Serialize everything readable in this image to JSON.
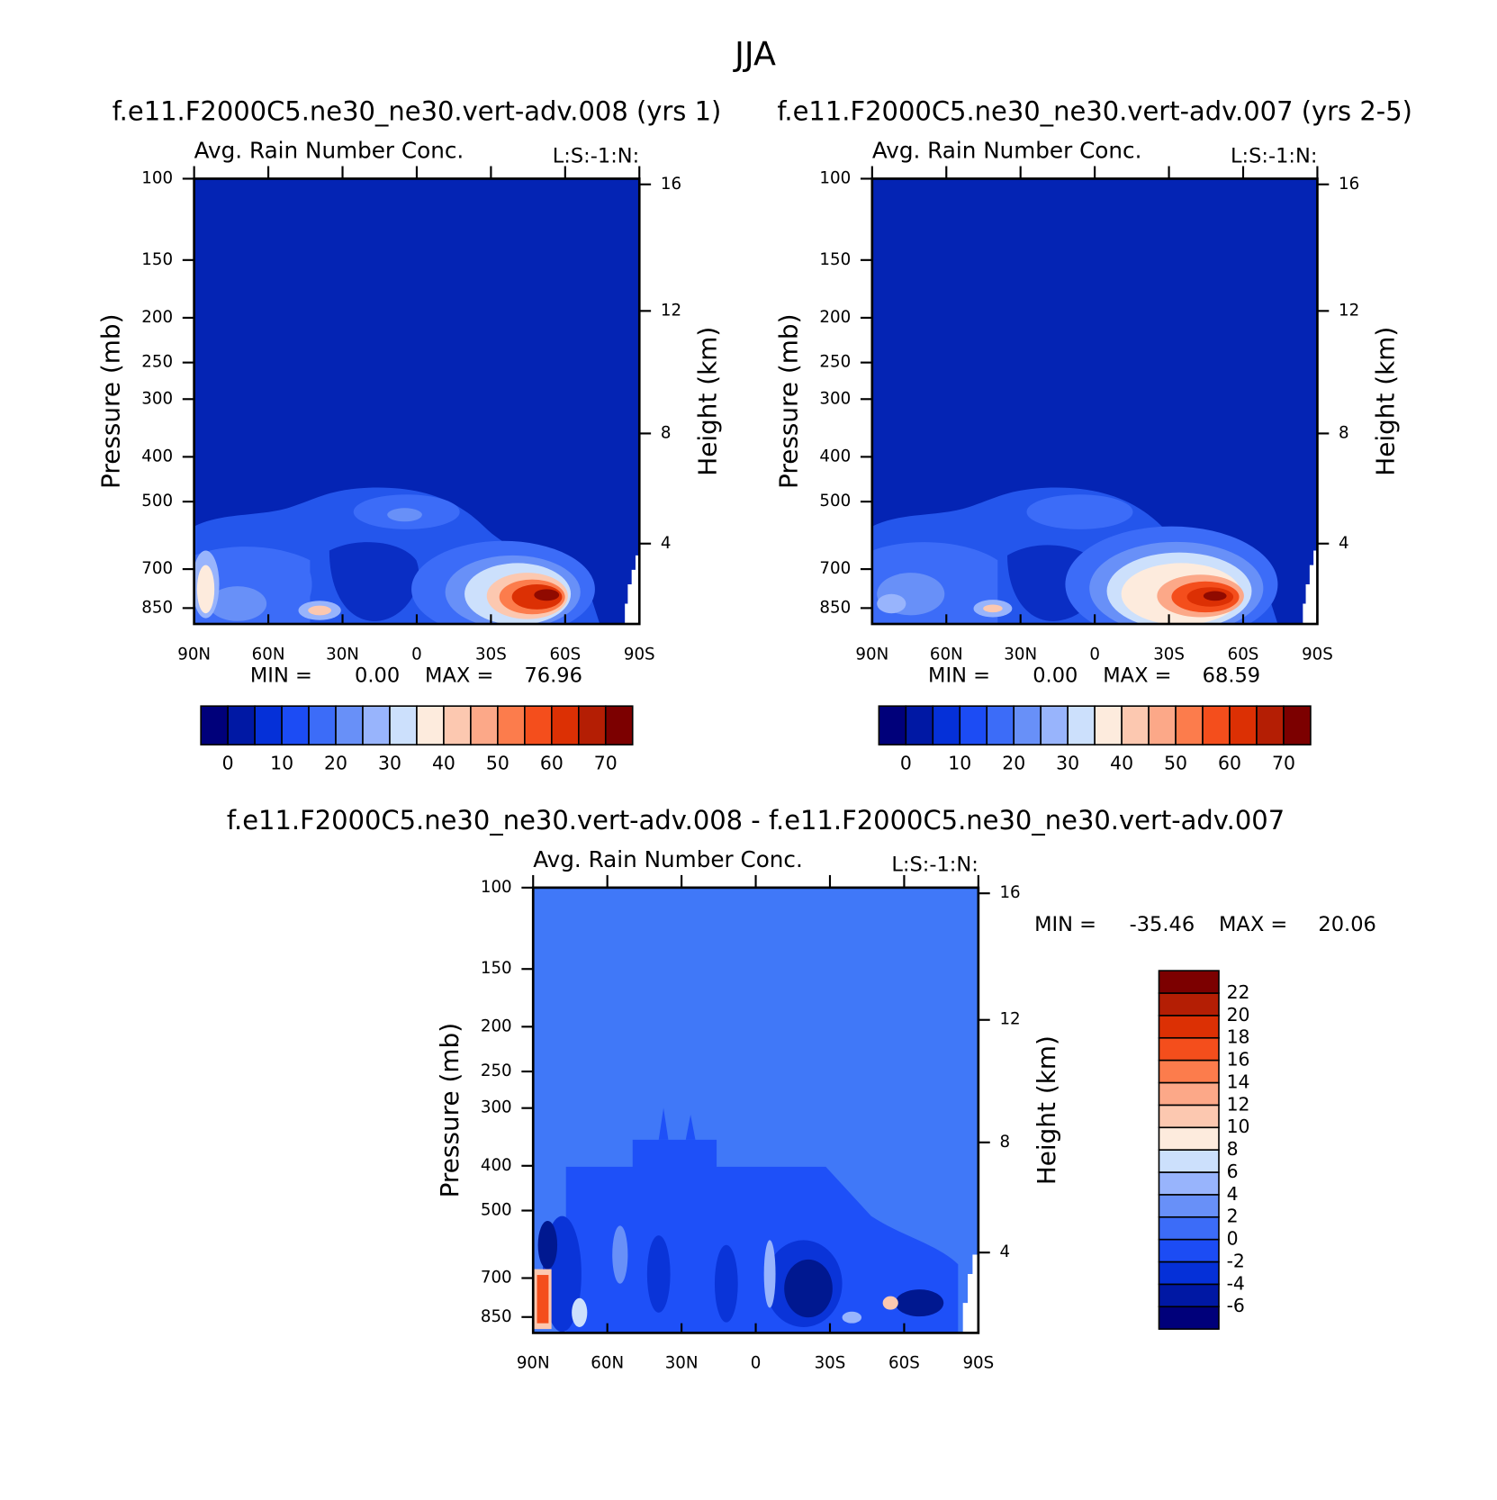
{
  "title": "JJA",
  "chart_data": [
    {
      "type": "contour",
      "title": "f.e11.F2000C5.ne30_ne30.vert-adv.008 (yrs 1)",
      "subtitle": "Avg. Rain Number Conc.",
      "corner_label": "L:S:-1:N:",
      "ylabel": "Pressure (mb)",
      "y2label": "Height (km)",
      "xlim": [
        90,
        -90
      ],
      "xticks": [
        {
          "value": 90,
          "label": "90N"
        },
        {
          "value": 60,
          "label": "60N"
        },
        {
          "value": 30,
          "label": "30N"
        },
        0,
        {
          "value": -30,
          "label": "30S"
        },
        {
          "value": -60,
          "label": "60S"
        },
        {
          "value": -90,
          "label": "90S"
        }
      ],
      "ylim": [
        100,
        920
      ],
      "ylog": true,
      "yticks": [
        100,
        150,
        200,
        250,
        300,
        400,
        500,
        700,
        850
      ],
      "y2ticks": [
        16,
        12,
        8,
        4
      ],
      "stats": {
        "names": [
          "MIN =",
          "MAX ="
        ],
        "values": [
          0,
          76.96
        ],
        "value_labels": [
          "0.00",
          "76.96"
        ]
      },
      "colorbar": {
        "orientation": "horizontal",
        "clim": [
          -5,
          75
        ],
        "ticks": [
          0,
          10,
          20,
          30,
          40,
          50,
          60,
          70
        ],
        "colors": [
          "#00007a",
          "#0018a4",
          "#0530d8",
          "#1c4cf4",
          "#3c6cf8",
          "#6890f8",
          "#98b4fc",
          "#cce0fc",
          "#fdebdd",
          "#fcc8b0",
          "#fca888",
          "#fc7c4c",
          "#f44e1c",
          "#dc3004",
          "#b41e04",
          "#7c0000"
        ]
      }
    },
    {
      "type": "contour",
      "title": "f.e11.F2000C5.ne30_ne30.vert-adv.007 (yrs 2-5)",
      "subtitle": "Avg. Rain Number Conc.",
      "corner_label": "L:S:-1:N:",
      "ylabel": "Pressure (mb)",
      "y2label": "Height (km)",
      "xlim": [
        90,
        -90
      ],
      "xticks": [
        {
          "value": 90,
          "label": "90N"
        },
        {
          "value": 60,
          "label": "60N"
        },
        {
          "value": 30,
          "label": "30N"
        },
        0,
        {
          "value": -30,
          "label": "30S"
        },
        {
          "value": -60,
          "label": "60S"
        },
        {
          "value": -90,
          "label": "90S"
        }
      ],
      "ylim": [
        100,
        920
      ],
      "ylog": true,
      "yticks": [
        100,
        150,
        200,
        250,
        300,
        400,
        500,
        700,
        850
      ],
      "y2ticks": [
        16,
        12,
        8,
        4
      ],
      "stats": {
        "names": [
          "MIN =",
          "MAX ="
        ],
        "values": [
          0,
          68.59
        ],
        "value_labels": [
          "0.00",
          "68.59"
        ]
      },
      "colorbar": {
        "orientation": "horizontal",
        "clim": [
          -5,
          75
        ],
        "ticks": [
          0,
          10,
          20,
          30,
          40,
          50,
          60,
          70
        ],
        "colors": [
          "#00007a",
          "#0018a4",
          "#0530d8",
          "#1c4cf4",
          "#3c6cf8",
          "#6890f8",
          "#98b4fc",
          "#cce0fc",
          "#fdebdd",
          "#fcc8b0",
          "#fca888",
          "#fc7c4c",
          "#f44e1c",
          "#dc3004",
          "#b41e04",
          "#7c0000"
        ]
      }
    },
    {
      "type": "contour",
      "title": "f.e11.F2000C5.ne30_ne30.vert-adv.008 - f.e11.F2000C5.ne30_ne30.vert-adv.007",
      "subtitle": "Avg. Rain Number Conc.",
      "corner_label": "L:S:-1:N:",
      "ylabel": "Pressure (mb)",
      "y2label": "Height (km)",
      "xlim": [
        90,
        -90
      ],
      "xticks": [
        {
          "value": 90,
          "label": "90N"
        },
        {
          "value": 60,
          "label": "60N"
        },
        {
          "value": 30,
          "label": "30N"
        },
        0,
        {
          "value": -30,
          "label": "30S"
        },
        {
          "value": -60,
          "label": "60S"
        },
        {
          "value": -90,
          "label": "90S"
        }
      ],
      "ylim": [
        100,
        920
      ],
      "ylog": true,
      "yticks": [
        100,
        150,
        200,
        250,
        300,
        400,
        500,
        700,
        850
      ],
      "y2ticks": [
        16,
        12,
        8,
        4
      ],
      "stats": {
        "names": [
          "MIN =",
          "MAX ="
        ],
        "values": [
          -35.46,
          20.06
        ],
        "value_labels": [
          "-35.46",
          "20.06"
        ]
      },
      "colorbar": {
        "orientation": "vertical",
        "clim": [
          -8,
          24
        ],
        "ticks": [
          22,
          20,
          18,
          16,
          14,
          12,
          10,
          8,
          6,
          4,
          2,
          0,
          -2,
          -4,
          -6
        ],
        "colors": [
          "#00007a",
          "#0018a4",
          "#0530d8",
          "#1c4cf4",
          "#3c6cf8",
          "#6890f8",
          "#98b4fc",
          "#cce0fc",
          "#fdebdd",
          "#fcc8b0",
          "#fca888",
          "#fc7c4c",
          "#f44e1c",
          "#dc3004",
          "#b41e04",
          "#7c0000"
        ]
      }
    }
  ]
}
